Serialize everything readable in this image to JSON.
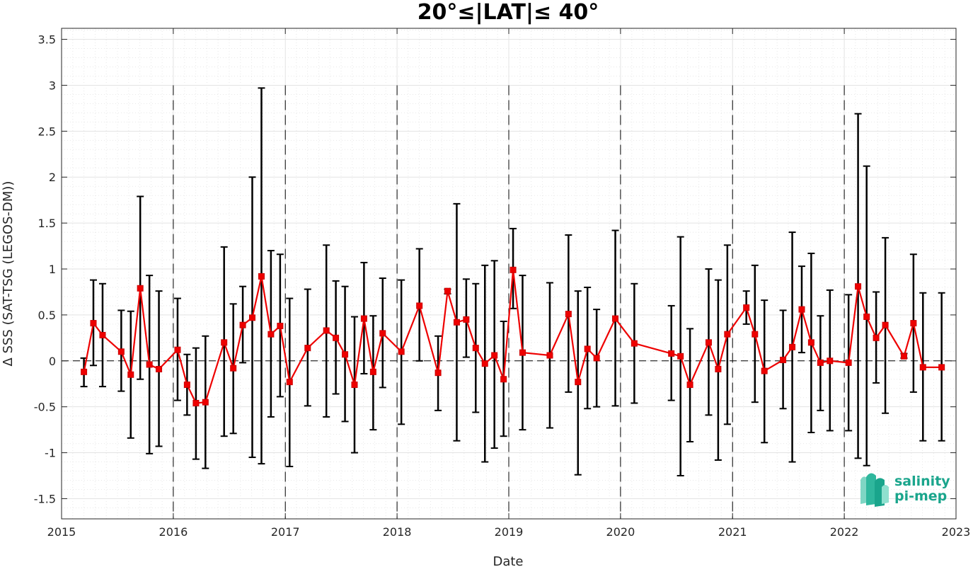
{
  "chart_data": {
    "type": "line",
    "title": "20°≤|LAT|≤ 40°",
    "xlabel": "Date",
    "ylabel": "Δ SSS (SAT-TSG (LEGOS-DM))",
    "xlim": [
      "2015-01-01",
      "2023-01-01"
    ],
    "ylim": [
      -1.72,
      3.62
    ],
    "x_ticks": [
      "2015",
      "2016",
      "2017",
      "2018",
      "2019",
      "2020",
      "2021",
      "2022",
      "2023"
    ],
    "y_ticks": [
      -1.5,
      -1,
      -0.5,
      0,
      0.5,
      1,
      1.5,
      2,
      2.5,
      3,
      3.5
    ],
    "y_tick_labels": [
      "-1.5",
      "-1",
      "-0.5",
      "0",
      "0.5",
      "1",
      "1.5",
      "2",
      "2.5",
      "3",
      "3.5"
    ],
    "grid": true,
    "zero_line": true,
    "year_boundaries_dashed": true,
    "colors": {
      "series": "#ee0000",
      "error_bars": "#000000",
      "grid": "#e3e3e3"
    },
    "series": [
      {
        "x": [
          "2015-03-15",
          "2015-04-15",
          "2015-05-15",
          "2015-07-15",
          "2015-08-15",
          "2015-09-15",
          "2015-10-15",
          "2015-11-15",
          "2016-01-15",
          "2016-02-15",
          "2016-03-15",
          "2016-04-15",
          "2016-06-15",
          "2016-07-15",
          "2016-08-15",
          "2016-09-15",
          "2016-10-15",
          "2016-11-15",
          "2016-12-15",
          "2017-01-15",
          "2017-03-15",
          "2017-05-15",
          "2017-06-15",
          "2017-07-15",
          "2017-08-15",
          "2017-09-15",
          "2017-10-15",
          "2017-11-15",
          "2018-01-15",
          "2018-03-15",
          "2018-05-15",
          "2018-06-15",
          "2018-07-15",
          "2018-08-15",
          "2018-09-15",
          "2018-10-15",
          "2018-11-15",
          "2018-12-15",
          "2019-01-15",
          "2019-02-15",
          "2019-05-15",
          "2019-07-15",
          "2019-08-15",
          "2019-09-15",
          "2019-10-15",
          "2019-12-15",
          "2020-02-15",
          "2020-06-15",
          "2020-07-15",
          "2020-08-15",
          "2020-10-15",
          "2020-11-15",
          "2020-12-15",
          "2021-02-15",
          "2021-03-15",
          "2021-04-15",
          "2021-06-15",
          "2021-07-15",
          "2021-08-15",
          "2021-09-15",
          "2021-10-15",
          "2021-11-15",
          "2022-01-15",
          "2022-02-15",
          "2022-03-15",
          "2022-04-15",
          "2022-05-15",
          "2022-07-15",
          "2022-08-15",
          "2022-09-15",
          "2022-11-15"
        ],
        "y": [
          -0.12,
          0.41,
          0.28,
          0.1,
          -0.15,
          0.79,
          -0.04,
          -0.09,
          0.12,
          -0.26,
          -0.46,
          -0.45,
          0.2,
          -0.08,
          0.39,
          0.47,
          0.92,
          0.29,
          0.38,
          -0.23,
          0.14,
          0.33,
          0.25,
          0.07,
          -0.26,
          0.46,
          -0.12,
          0.3,
          0.1,
          0.6,
          -0.13,
          0.76,
          0.42,
          0.45,
          0.14,
          -0.03,
          0.06,
          -0.2,
          0.99,
          0.09,
          0.06,
          0.51,
          -0.23,
          0.13,
          0.03,
          0.46,
          0.19,
          0.08,
          0.05,
          -0.26,
          0.2,
          -0.09,
          0.29,
          0.58,
          0.29,
          -0.11,
          0.01,
          0.15,
          0.56,
          0.2,
          -0.02,
          0.0,
          -0.02,
          0.81,
          0.48,
          0.25,
          0.39,
          0.05,
          0.41,
          -0.07,
          -0.07
        ],
        "error_low": [
          -0.28,
          -0.05,
          -0.28,
          -0.33,
          -0.84,
          -0.2,
          -1.01,
          -0.93,
          -0.43,
          -0.59,
          -1.07,
          -1.17,
          -0.82,
          -0.79,
          -0.02,
          -1.05,
          -1.12,
          -0.61,
          -0.39,
          -1.15,
          -0.49,
          -0.61,
          -0.36,
          -0.66,
          -1.0,
          -0.14,
          -0.75,
          -0.29,
          -0.69,
          0.0,
          -0.54,
          0.73,
          -0.87,
          0.04,
          -0.56,
          -1.1,
          -0.95,
          -0.82,
          0.57,
          -0.75,
          -0.73,
          -0.34,
          -1.24,
          -0.52,
          -0.5,
          -0.49,
          -0.46,
          -0.43,
          -1.25,
          -0.88,
          -0.59,
          -1.08,
          -0.69,
          0.4,
          -0.45,
          -0.89,
          -0.52,
          -1.1,
          0.09,
          -0.78,
          -0.54,
          -0.76,
          -0.76,
          -1.06,
          -1.14,
          -0.24,
          -0.57,
          0.03,
          -0.34,
          -0.87,
          -0.87
        ],
        "error_high": [
          0.03,
          0.88,
          0.84,
          0.55,
          0.54,
          1.79,
          0.93,
          0.76,
          0.68,
          0.07,
          0.14,
          0.27,
          1.24,
          0.62,
          0.81,
          2.0,
          2.97,
          1.2,
          1.16,
          0.68,
          0.78,
          1.26,
          0.87,
          0.81,
          0.48,
          1.07,
          0.49,
          0.9,
          0.88,
          1.22,
          0.27,
          0.78,
          1.71,
          0.89,
          0.84,
          1.04,
          1.09,
          0.43,
          1.44,
          0.93,
          0.85,
          1.37,
          0.76,
          0.8,
          0.56,
          1.42,
          0.84,
          0.6,
          1.35,
          0.35,
          1.0,
          0.88,
          1.26,
          0.76,
          1.04,
          0.66,
          0.55,
          1.4,
          1.03,
          1.17,
          0.49,
          0.77,
          0.72,
          2.69,
          2.12,
          0.75,
          1.34,
          0.08,
          1.16,
          0.74,
          0.74
        ]
      }
    ]
  },
  "logo": {
    "line1": "salinity",
    "line2": "pi-mep",
    "color": "#1aa58c"
  }
}
